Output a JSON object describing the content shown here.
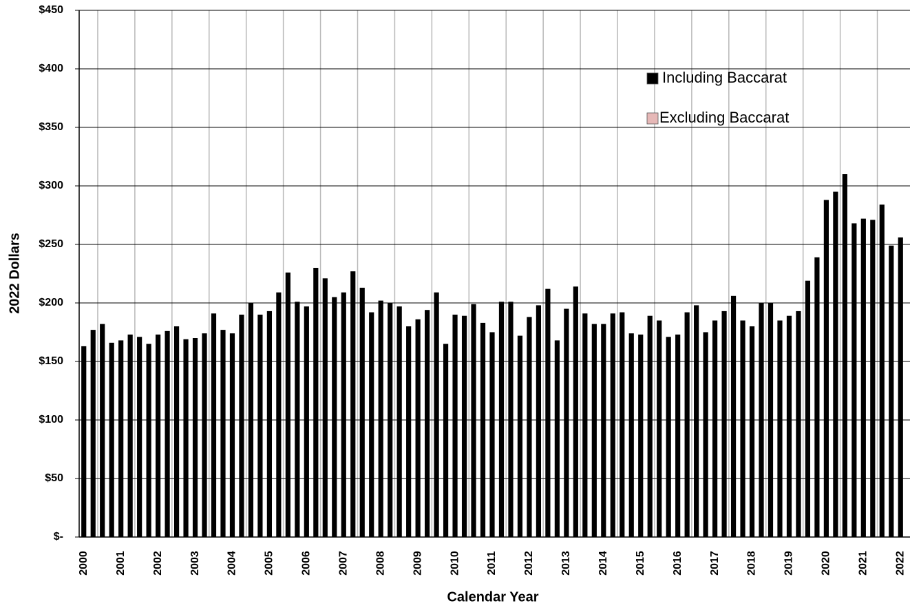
{
  "chart_data": {
    "type": "bar",
    "x_label": "Calendar Year",
    "y_label": "2022 Dollars",
    "categories": [
      "2000",
      null,
      null,
      null,
      "2001",
      null,
      null,
      null,
      "2002",
      null,
      null,
      null,
      "2003",
      null,
      null,
      null,
      "2004",
      null,
      null,
      null,
      "2005",
      null,
      null,
      null,
      "2006",
      null,
      null,
      null,
      "2007",
      null,
      null,
      null,
      "2008",
      null,
      null,
      null,
      "2009",
      null,
      null,
      null,
      "2010",
      null,
      null,
      null,
      "2011",
      null,
      null,
      null,
      "2012",
      null,
      null,
      null,
      "2013",
      null,
      null,
      null,
      "2014",
      null,
      null,
      null,
      "2015",
      null,
      null,
      null,
      "2016",
      null,
      null,
      null,
      "2017",
      null,
      null,
      null,
      "2018",
      null,
      null,
      null,
      "2019",
      null,
      null,
      null,
      "2020",
      null,
      null,
      null,
      "2021",
      null,
      null,
      null,
      "2022"
    ],
    "series": [
      {
        "name": "Including Baccarat",
        "color": "#000000",
        "values": [
          163,
          177,
          182,
          166,
          168,
          173,
          171,
          165,
          173,
          176,
          180,
          169,
          170,
          174,
          191,
          177,
          174,
          190,
          200,
          190,
          193,
          209,
          226,
          201,
          197,
          230,
          221,
          205,
          209,
          227,
          213,
          192,
          202,
          200,
          197,
          180,
          186,
          194,
          209,
          165,
          190,
          189,
          199,
          183,
          175,
          201,
          201,
          172,
          188,
          198,
          212,
          168,
          195,
          214,
          191,
          182,
          182,
          191,
          192,
          174,
          173,
          189,
          185,
          171,
          173,
          192,
          198,
          175,
          185,
          193,
          206,
          185,
          180,
          200,
          200,
          185,
          189,
          193,
          219,
          239,
          288,
          295,
          310,
          268,
          272,
          271,
          284,
          249,
          256
        ]
      },
      {
        "name": "Excluding Baccarat",
        "color": "#e6b8b7",
        "values": [
          null,
          null,
          null,
          null,
          null,
          null,
          null,
          null,
          null,
          null,
          null,
          null,
          null,
          null,
          null,
          null,
          null,
          null,
          null,
          null,
          null,
          null,
          null,
          null,
          null,
          null,
          null,
          null,
          null,
          null,
          null,
          null,
          null,
          null,
          null,
          null,
          null,
          null,
          null,
          null,
          null,
          null,
          null,
          null,
          null,
          null,
          null,
          null,
          null,
          null,
          null,
          null,
          null,
          null,
          null,
          null,
          null,
          null,
          null,
          null,
          null,
          null,
          null,
          null,
          null,
          null,
          null,
          null,
          null,
          null,
          null,
          null,
          null,
          null,
          null,
          null,
          null,
          null,
          null,
          null,
          null,
          null,
          null,
          null,
          null,
          null,
          null,
          null,
          null
        ]
      }
    ],
    "ylim": [
      0,
      450
    ],
    "yticks": [
      {
        "value": 0,
        "label": "$-"
      },
      {
        "value": 50,
        "label": "$50"
      },
      {
        "value": 100,
        "label": "$100"
      },
      {
        "value": 150,
        "label": "$150"
      },
      {
        "value": 200,
        "label": "$200"
      },
      {
        "value": 250,
        "label": "$250"
      },
      {
        "value": 300,
        "label": "$300"
      },
      {
        "value": 350,
        "label": "$350"
      },
      {
        "value": 400,
        "label": "$400"
      },
      {
        "value": 450,
        "label": "$450"
      }
    ],
    "grid": true
  }
}
